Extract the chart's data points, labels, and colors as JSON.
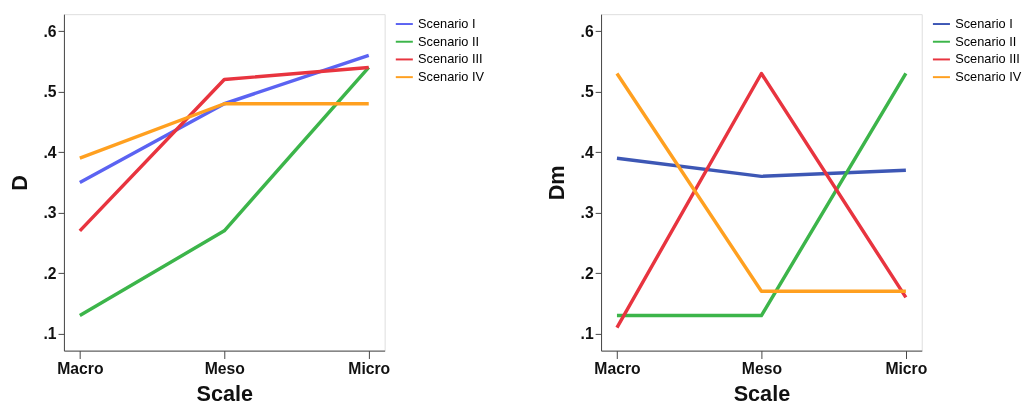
{
  "chart_data": [
    {
      "type": "line",
      "categories": [
        "Macro",
        "Meso",
        "Micro"
      ],
      "xlabel": "Scale",
      "ylabel": "D",
      "ylim": [
        0.072,
        0.628
      ],
      "yticks": [
        {
          "value": 0.1,
          "label": ".1"
        },
        {
          "value": 0.2,
          "label": ".2"
        },
        {
          "value": 0.3,
          "label": ".3"
        },
        {
          "value": 0.4,
          "label": ".4"
        },
        {
          "value": 0.5,
          "label": ".5"
        },
        {
          "value": 0.6,
          "label": ".6"
        }
      ],
      "legend": "top right",
      "grid": false,
      "line_style": "solid",
      "marker": "none",
      "series": [
        {
          "name": "Scenario I",
          "color": "#5b63f2",
          "values": [
            0.35,
            0.48,
            0.56
          ]
        },
        {
          "name": "Scenario II",
          "color": "#3cb54a",
          "values": [
            0.13,
            0.27,
            0.54
          ]
        },
        {
          "name": "Scenario III",
          "color": "#e8343f",
          "values": [
            0.27,
            0.52,
            0.54
          ]
        },
        {
          "name": "Scenario IV",
          "color": "#ffa020",
          "values": [
            0.39,
            0.48,
            0.48
          ]
        }
      ]
    },
    {
      "type": "line",
      "categories": [
        "Macro",
        "Meso",
        "Micro"
      ],
      "xlabel": "Scale",
      "ylabel": "Dm",
      "ylim": [
        0.072,
        0.628
      ],
      "yticks": [
        {
          "value": 0.1,
          "label": ".1"
        },
        {
          "value": 0.2,
          "label": ".2"
        },
        {
          "value": 0.3,
          "label": ".3"
        },
        {
          "value": 0.4,
          "label": ".4"
        },
        {
          "value": 0.5,
          "label": ".5"
        },
        {
          "value": 0.6,
          "label": ".6"
        }
      ],
      "legend": "top right",
      "grid": false,
      "line_style": "solid",
      "marker": "none",
      "series": [
        {
          "name": "Scenario I",
          "color": "#3d57b5",
          "values": [
            0.39,
            0.36,
            0.37
          ]
        },
        {
          "name": "Scenario II",
          "color": "#3cb54a",
          "values": [
            0.13,
            0.13,
            0.53
          ]
        },
        {
          "name": "Scenario III",
          "color": "#e8343f",
          "values": [
            0.11,
            0.53,
            0.16
          ]
        },
        {
          "name": "Scenario IV",
          "color": "#ffa020",
          "values": [
            0.53,
            0.17,
            0.17
          ]
        }
      ]
    }
  ]
}
